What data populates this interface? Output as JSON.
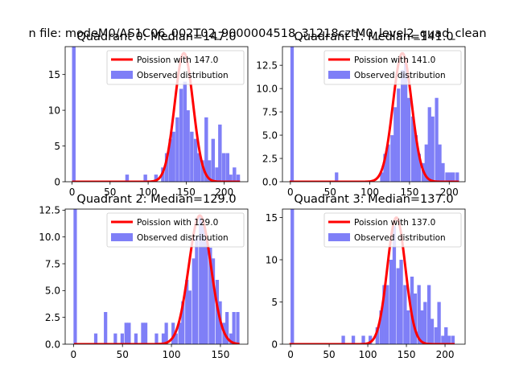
{
  "figure": {
    "suptitle": "n file: modeM0/AS1C06_002T02_9000004518_31218cztM0_level2_quad_clean"
  },
  "colors": {
    "hist": "#7f7ff7",
    "curve": "#ff0000",
    "axis": "#000000",
    "background": "#ffffff"
  },
  "chart_data": [
    {
      "type": "bar",
      "title": "Quadrant 0: Median=147.0",
      "legend": [
        "Poission with 147.0",
        "Observed distribution"
      ],
      "legend_position": "upper right",
      "xlim": [
        -9,
        231
      ],
      "ylim": [
        0,
        18.9
      ],
      "xticks": [
        0,
        50,
        100,
        150,
        200
      ],
      "yticks": [
        0,
        5,
        10,
        15
      ],
      "bin_width": 4.7,
      "median": 147.0,
      "curve_peak": 18.0,
      "bins": [
        {
          "x": 0,
          "count": 19
        },
        {
          "x": 70,
          "count": 1
        },
        {
          "x": 94,
          "count": 1
        },
        {
          "x": 108,
          "count": 1
        },
        {
          "x": 117,
          "count": 2
        },
        {
          "x": 122,
          "count": 4
        },
        {
          "x": 127,
          "count": 6
        },
        {
          "x": 131,
          "count": 7
        },
        {
          "x": 136,
          "count": 9
        },
        {
          "x": 141,
          "count": 13
        },
        {
          "x": 146,
          "count": 14
        },
        {
          "x": 150,
          "count": 10
        },
        {
          "x": 155,
          "count": 7
        },
        {
          "x": 160,
          "count": 6
        },
        {
          "x": 164,
          "count": 4
        },
        {
          "x": 169,
          "count": 3
        },
        {
          "x": 174,
          "count": 9
        },
        {
          "x": 178,
          "count": 3
        },
        {
          "x": 183,
          "count": 6
        },
        {
          "x": 188,
          "count": 2
        },
        {
          "x": 192,
          "count": 8
        },
        {
          "x": 197,
          "count": 4
        },
        {
          "x": 202,
          "count": 4
        },
        {
          "x": 206,
          "count": 1
        },
        {
          "x": 211,
          "count": 2
        },
        {
          "x": 216,
          "count": 1
        }
      ]
    },
    {
      "type": "bar",
      "title": "Quadrant 1: Median=141.0",
      "legend": [
        "Poission with 141.0",
        "Observed distribution"
      ],
      "legend_position": "upper right",
      "xlim": [
        -10,
        220
      ],
      "ylim": [
        0,
        14.5
      ],
      "xticks": [
        0,
        50,
        100,
        150,
        200
      ],
      "yticks": [
        0,
        2.5,
        5.0,
        7.5,
        10.0,
        12.5
      ],
      "bin_width": 4.3,
      "median": 141.0,
      "curve_peak": 13.8,
      "bins": [
        {
          "x": 0,
          "count": 15
        },
        {
          "x": 56,
          "count": 1
        },
        {
          "x": 113,
          "count": 1
        },
        {
          "x": 117,
          "count": 3
        },
        {
          "x": 121,
          "count": 4
        },
        {
          "x": 126,
          "count": 5
        },
        {
          "x": 130,
          "count": 8
        },
        {
          "x": 134,
          "count": 10
        },
        {
          "x": 139,
          "count": 12
        },
        {
          "x": 143,
          "count": 13
        },
        {
          "x": 147,
          "count": 9
        },
        {
          "x": 152,
          "count": 7
        },
        {
          "x": 156,
          "count": 5
        },
        {
          "x": 160,
          "count": 3
        },
        {
          "x": 165,
          "count": 2
        },
        {
          "x": 169,
          "count": 4
        },
        {
          "x": 173,
          "count": 8
        },
        {
          "x": 177,
          "count": 7
        },
        {
          "x": 182,
          "count": 9
        },
        {
          "x": 186,
          "count": 4
        },
        {
          "x": 190,
          "count": 2
        },
        {
          "x": 195,
          "count": 1
        },
        {
          "x": 199,
          "count": 1
        },
        {
          "x": 203,
          "count": 1
        },
        {
          "x": 208,
          "count": 1
        }
      ]
    },
    {
      "type": "bar",
      "title": "Quadrant 2: Median=129.0",
      "legend": [
        "Poission with 129.0",
        "Observed distribution"
      ],
      "legend_position": "upper right",
      "xlim": [
        -8.5,
        178
      ],
      "ylim": [
        0,
        12.6
      ],
      "xticks": [
        0,
        50,
        100,
        150
      ],
      "yticks": [
        0,
        2.5,
        5.0,
        7.5,
        10.0,
        12.5
      ],
      "bin_width": 3.45,
      "median": 129.0,
      "curve_peak": 12.0,
      "bins": [
        {
          "x": 0,
          "count": 13
        },
        {
          "x": 21,
          "count": 1
        },
        {
          "x": 31,
          "count": 3
        },
        {
          "x": 41,
          "count": 1
        },
        {
          "x": 48,
          "count": 1
        },
        {
          "x": 52,
          "count": 2
        },
        {
          "x": 55,
          "count": 2
        },
        {
          "x": 62,
          "count": 1
        },
        {
          "x": 69,
          "count": 2
        },
        {
          "x": 72,
          "count": 2
        },
        {
          "x": 83,
          "count": 1
        },
        {
          "x": 90,
          "count": 1
        },
        {
          "x": 93,
          "count": 2
        },
        {
          "x": 100,
          "count": 2
        },
        {
          "x": 103,
          "count": 1
        },
        {
          "x": 107,
          "count": 2
        },
        {
          "x": 110,
          "count": 4
        },
        {
          "x": 114,
          "count": 6
        },
        {
          "x": 117,
          "count": 5
        },
        {
          "x": 121,
          "count": 8
        },
        {
          "x": 124,
          "count": 10
        },
        {
          "x": 128,
          "count": 12
        },
        {
          "x": 131,
          "count": 11
        },
        {
          "x": 134,
          "count": 10
        },
        {
          "x": 138,
          "count": 9
        },
        {
          "x": 141,
          "count": 8
        },
        {
          "x": 145,
          "count": 6
        },
        {
          "x": 148,
          "count": 4
        },
        {
          "x": 152,
          "count": 2
        },
        {
          "x": 155,
          "count": 3
        },
        {
          "x": 159,
          "count": 1
        },
        {
          "x": 162,
          "count": 3
        },
        {
          "x": 166,
          "count": 3
        }
      ]
    },
    {
      "type": "bar",
      "title": "Quadrant 3: Median=137.0",
      "legend": [
        "Poission with 137.0",
        "Observed distribution"
      ],
      "legend_position": "upper right",
      "xlim": [
        -10.5,
        226
      ],
      "ylim": [
        0,
        16
      ],
      "xticks": [
        0,
        50,
        100,
        150,
        200
      ],
      "yticks": [
        0,
        5,
        10,
        15
      ],
      "bin_width": 4.5,
      "median": 137.0,
      "curve_peak": 15.0,
      "bins": [
        {
          "x": 0,
          "count": 16
        },
        {
          "x": 66,
          "count": 1
        },
        {
          "x": 79,
          "count": 1
        },
        {
          "x": 92,
          "count": 1
        },
        {
          "x": 101,
          "count": 1
        },
        {
          "x": 110,
          "count": 2
        },
        {
          "x": 115,
          "count": 4
        },
        {
          "x": 119,
          "count": 7
        },
        {
          "x": 123,
          "count": 7
        },
        {
          "x": 128,
          "count": 10
        },
        {
          "x": 132,
          "count": 14
        },
        {
          "x": 137,
          "count": 9
        },
        {
          "x": 141,
          "count": 10
        },
        {
          "x": 146,
          "count": 7
        },
        {
          "x": 150,
          "count": 4
        },
        {
          "x": 155,
          "count": 8
        },
        {
          "x": 159,
          "count": 6
        },
        {
          "x": 164,
          "count": 7
        },
        {
          "x": 168,
          "count": 4
        },
        {
          "x": 172,
          "count": 5
        },
        {
          "x": 177,
          "count": 7
        },
        {
          "x": 181,
          "count": 3
        },
        {
          "x": 186,
          "count": 2
        },
        {
          "x": 190,
          "count": 5
        },
        {
          "x": 195,
          "count": 1
        },
        {
          "x": 199,
          "count": 2
        },
        {
          "x": 203,
          "count": 1
        },
        {
          "x": 208,
          "count": 1
        }
      ]
    }
  ]
}
